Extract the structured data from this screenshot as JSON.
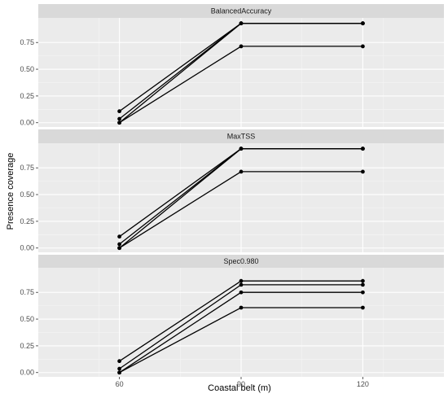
{
  "chart_data": {
    "type": "line",
    "xlabel": "Coastal belt (m)",
    "ylabel": "Presence coverage",
    "x_ticks": [
      60,
      90,
      120
    ],
    "y_ticks": [
      0.0,
      0.25,
      0.5,
      0.75
    ],
    "y_tick_labels": [
      "0.00",
      "0.25",
      "0.50",
      "0.75"
    ],
    "xlim": [
      40,
      140
    ],
    "ylim": [
      -0.04,
      0.98
    ],
    "grid": true,
    "facets": [
      {
        "title": "BalancedAccuracy",
        "series": [
          {
            "x": [
              60,
              90,
              120
            ],
            "values": [
              0.107,
              0.929,
              0.929
            ]
          },
          {
            "x": [
              60,
              90,
              120
            ],
            "values": [
              0.036,
              0.929,
              0.929
            ]
          },
          {
            "x": [
              60,
              90,
              120
            ],
            "values": [
              0.0,
              0.929,
              0.929
            ]
          },
          {
            "x": [
              60,
              90,
              120
            ],
            "values": [
              0.0,
              0.714,
              0.714
            ]
          }
        ]
      },
      {
        "title": "MaxTSS",
        "series": [
          {
            "x": [
              60,
              90,
              120
            ],
            "values": [
              0.107,
              0.929,
              0.929
            ]
          },
          {
            "x": [
              60,
              90,
              120
            ],
            "values": [
              0.036,
              0.929,
              0.929
            ]
          },
          {
            "x": [
              60,
              90,
              120
            ],
            "values": [
              0.0,
              0.929,
              0.929
            ]
          },
          {
            "x": [
              60,
              90,
              120
            ],
            "values": [
              0.0,
              0.714,
              0.714
            ]
          }
        ]
      },
      {
        "title": "Spec0.980",
        "series": [
          {
            "x": [
              60,
              90,
              120
            ],
            "values": [
              0.107,
              0.857,
              0.857
            ]
          },
          {
            "x": [
              60,
              90,
              120
            ],
            "values": [
              0.036,
              0.821,
              0.821
            ]
          },
          {
            "x": [
              60,
              90,
              120
            ],
            "values": [
              0.0,
              0.75,
              0.75
            ]
          },
          {
            "x": [
              60,
              90,
              120
            ],
            "values": [
              0.0,
              0.607,
              0.607
            ]
          }
        ]
      }
    ]
  }
}
